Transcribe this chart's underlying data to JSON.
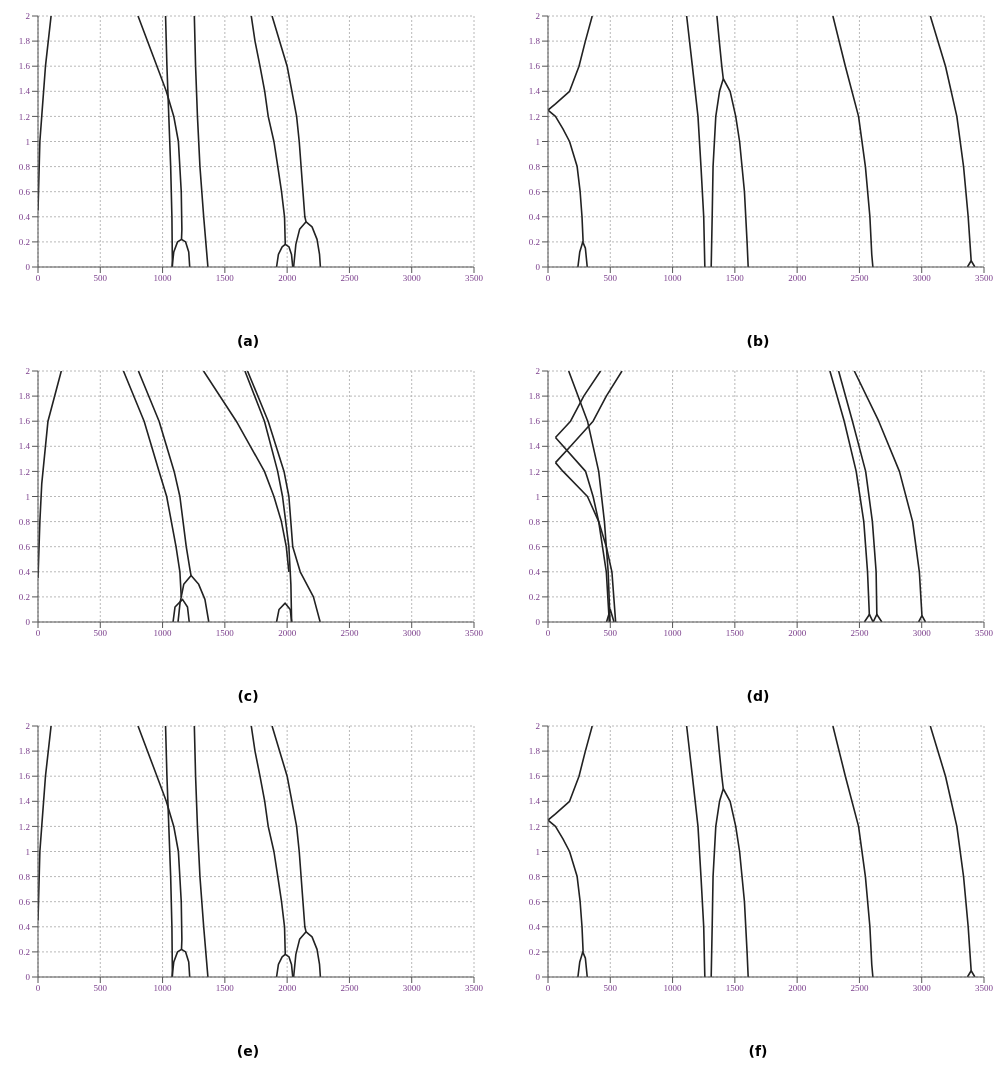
{
  "chart_data": [
    {
      "type": "line",
      "title": "(a)",
      "xlim": [
        0,
        3500
      ],
      "ylim": [
        0,
        2
      ],
      "xticks": [
        0,
        500,
        1000,
        1500,
        2000,
        2500,
        3000,
        3500
      ],
      "yticks": [
        0,
        0.2,
        0.4,
        0.6,
        0.8,
        1,
        1.2,
        1.4,
        1.6,
        1.8,
        2
      ],
      "grid": true,
      "series": [
        {
          "color": "#222222",
          "x": [
            0,
            15,
            30,
            60,
            105
          ],
          "values": [
            0.45,
            1,
            1.2,
            1.6,
            2
          ]
        },
        {
          "color": "#222222",
          "x": [
            803,
            955,
            1030,
            1090,
            1127,
            1150,
            1155,
            1152
          ],
          "values": [
            2,
            1.6,
            1.4,
            1.2,
            1,
            0.6,
            0.3,
            0.22
          ]
        },
        {
          "color": "#222222",
          "x": [
            1076,
            1090,
            1120,
            1152,
            1185,
            1210,
            1218
          ],
          "values": [
            0,
            0.12,
            0.2,
            0.22,
            0.2,
            0.12,
            0
          ]
        },
        {
          "color": "#222222",
          "x": [
            1024,
            1035,
            1050,
            1065,
            1075,
            1079
          ],
          "values": [
            2,
            1.6,
            1.2,
            0.8,
            0.4,
            0
          ]
        },
        {
          "color": "#222222",
          "x": [
            1255,
            1265,
            1280,
            1300,
            1330,
            1364
          ],
          "values": [
            2,
            1.6,
            1.2,
            0.8,
            0.4,
            0
          ]
        },
        {
          "color": "#222222",
          "x": [
            1712,
            1742,
            1782,
            1820,
            1848,
            1894,
            1925,
            1955,
            1979,
            1985
          ],
          "values": [
            2,
            1.8,
            1.6,
            1.4,
            1.2,
            1,
            0.8,
            0.6,
            0.4,
            0.18
          ]
        },
        {
          "color": "#222222",
          "x": [
            1915,
            1930,
            1960,
            1985,
            2015,
            2035,
            2045
          ],
          "values": [
            0,
            0.1,
            0.16,
            0.18,
            0.16,
            0.1,
            0
          ]
        },
        {
          "color": "#222222",
          "x": [
            1879,
            2000,
            2076,
            2097,
            2127,
            2142,
            2152
          ],
          "values": [
            2,
            1.6,
            1.2,
            1,
            0.6,
            0.4,
            0.36
          ]
        },
        {
          "color": "#222222",
          "x": [
            2052,
            2070,
            2100,
            2152,
            2200,
            2240,
            2260,
            2267
          ],
          "values": [
            0,
            0.18,
            0.3,
            0.36,
            0.32,
            0.22,
            0.1,
            0
          ]
        }
      ]
    },
    {
      "type": "line",
      "title": "(b)",
      "xlim": [
        0,
        3500
      ],
      "ylim": [
        0,
        2
      ],
      "xticks": [
        0,
        500,
        1000,
        1500,
        2000,
        2500,
        3000,
        3500
      ],
      "yticks": [
        0,
        0.2,
        0.4,
        0.6,
        0.8,
        1,
        1.2,
        1.4,
        1.6,
        1.8,
        2
      ],
      "grid": true,
      "series": [
        {
          "color": "#222222",
          "x": [
            0,
            60,
            173,
            249,
            300,
            355
          ],
          "values": [
            1.25,
            1.3,
            1.4,
            1.6,
            1.8,
            2
          ]
        },
        {
          "color": "#222222",
          "x": [
            0,
            60,
            120,
            173,
            234,
            258,
            273,
            282
          ],
          "values": [
            1.25,
            1.2,
            1.1,
            1,
            0.8,
            0.6,
            0.4,
            0.2
          ]
        },
        {
          "color": "#222222",
          "x": [
            240,
            255,
            279,
            300,
            315
          ],
          "values": [
            0,
            0.12,
            0.2,
            0.15,
            0
          ]
        },
        {
          "color": "#222222",
          "x": [
            1113,
            1159,
            1204,
            1228,
            1250,
            1259
          ],
          "values": [
            2,
            1.6,
            1.2,
            0.8,
            0.4,
            0
          ]
        },
        {
          "color": "#222222",
          "x": [
            1310,
            1318,
            1325,
            1347,
            1377,
            1407,
            1462,
            1507,
            1538,
            1577,
            1598,
            1607
          ],
          "values": [
            0,
            0.4,
            0.8,
            1.2,
            1.4,
            1.5,
            1.4,
            1.2,
            1,
            0.6,
            0.2,
            0
          ]
        },
        {
          "color": "#222222",
          "x": [
            1356,
            1375,
            1395,
            1407
          ],
          "values": [
            2,
            1.8,
            1.6,
            1.5
          ]
        },
        {
          "color": "#222222",
          "x": [
            2287,
            2387,
            2493,
            2548,
            2584,
            2599,
            2608
          ],
          "values": [
            2,
            1.6,
            1.2,
            0.8,
            0.4,
            0.1,
            0
          ]
        },
        {
          "color": "#222222",
          "x": [
            3069,
            3191,
            3282,
            3336,
            3373,
            3397
          ],
          "values": [
            2,
            1.6,
            1.2,
            0.8,
            0.4,
            0.05
          ]
        },
        {
          "color": "#222222",
          "x": [
            3367,
            3397,
            3427
          ],
          "values": [
            0,
            0.05,
            0
          ]
        }
      ]
    },
    {
      "type": "line",
      "title": "(c)",
      "xlim": [
        0,
        3500
      ],
      "ylim": [
        0,
        2
      ],
      "xticks": [
        0,
        500,
        1000,
        1500,
        2000,
        2500,
        3000,
        3500
      ],
      "yticks": [
        0,
        0.2,
        0.4,
        0.6,
        0.8,
        1,
        1.2,
        1.4,
        1.6,
        1.8,
        2
      ],
      "grid": true,
      "series": [
        {
          "color": "#222222",
          "x": [
            0,
            15,
            30,
            80,
            187
          ],
          "values": [
            0.35,
            0.8,
            1.1,
            1.6,
            2
          ]
        },
        {
          "color": "#222222",
          "x": [
            686,
            852,
            972,
            1033,
            1108,
            1139,
            1150
          ],
          "values": [
            2,
            1.6,
            1.2,
            1,
            0.6,
            0.4,
            0.2
          ]
        },
        {
          "color": "#222222",
          "x": [
            806,
            972,
            1093,
            1139,
            1190,
            1223,
            1229
          ],
          "values": [
            2,
            1.6,
            1.2,
            1,
            0.6,
            0.4,
            0.37
          ]
        },
        {
          "color": "#222222",
          "x": [
            1124,
            1140,
            1170,
            1229,
            1290,
            1340,
            1371
          ],
          "values": [
            0,
            0.15,
            0.3,
            0.37,
            0.3,
            0.18,
            0
          ]
        },
        {
          "color": "#222222",
          "x": [
            1084,
            1100,
            1160,
            1200,
            1214
          ],
          "values": [
            0,
            0.12,
            0.18,
            0.12,
            0
          ]
        },
        {
          "color": "#222222",
          "x": [
            1329,
            1592,
            1818,
            1894,
            1954,
            1993,
            2014
          ],
          "values": [
            2,
            1.6,
            1.2,
            1,
            0.8,
            0.6,
            0.4
          ]
        },
        {
          "color": "#222222",
          "x": [
            1915,
            1935,
            1984,
            2025,
            2036
          ],
          "values": [
            0,
            0.1,
            0.15,
            0.1,
            0
          ]
        },
        {
          "color": "#222222",
          "x": [
            1661,
            1818,
            1924,
            1963,
            2014,
            2030,
            2036
          ],
          "values": [
            2,
            1.6,
            1.2,
            1,
            0.6,
            0.3,
            0
          ]
        },
        {
          "color": "#222222",
          "x": [
            1682,
            1848,
            1975,
            2014,
            2045,
            2105,
            2211,
            2265
          ],
          "values": [
            2,
            1.6,
            1.2,
            1,
            0.6,
            0.4,
            0.2,
            0
          ]
        }
      ]
    },
    {
      "type": "line",
      "title": "(d)",
      "xlim": [
        0,
        3500
      ],
      "ylim": [
        0,
        2
      ],
      "xticks": [
        0,
        500,
        1000,
        1500,
        2000,
        2500,
        3000,
        3500
      ],
      "yticks": [
        0,
        0.2,
        0.4,
        0.6,
        0.8,
        1,
        1.2,
        1.4,
        1.6,
        1.8,
        2
      ],
      "grid": true,
      "series": [
        {
          "color": "#222222",
          "x": [
            166,
            317,
            407,
            453,
            483,
            498
          ],
          "values": [
            2,
            1.6,
            1.2,
            0.8,
            0.4,
            0
          ]
        },
        {
          "color": "#222222",
          "x": [
            422,
            287,
            181,
            60
          ],
          "values": [
            2,
            1.8,
            1.6,
            1.47
          ]
        },
        {
          "color": "#222222",
          "x": [
            60,
            302,
            362,
            407,
            468,
            492
          ],
          "values": [
            1.47,
            1.2,
            1,
            0.8,
            0.4,
            0
          ]
        },
        {
          "color": "#222222",
          "x": [
            594,
            468,
            362,
            181,
            60
          ],
          "values": [
            2,
            1.8,
            1.6,
            1.4,
            1.27
          ]
        },
        {
          "color": "#222222",
          "x": [
            60,
            121,
            317,
            407,
            468,
            513,
            543
          ],
          "values": [
            1.27,
            1.2,
            1,
            0.8,
            0.6,
            0.4,
            0
          ]
        },
        {
          "color": "#222222",
          "x": [
            470,
            500,
            530
          ],
          "values": [
            0,
            0.1,
            0
          ]
        },
        {
          "color": "#222222",
          "x": [
            2263,
            2378,
            2474,
            2535,
            2565,
            2580
          ],
          "values": [
            2,
            1.6,
            1.2,
            0.8,
            0.4,
            0.05
          ]
        },
        {
          "color": "#222222",
          "x": [
            2540,
            2580,
            2610
          ],
          "values": [
            0,
            0.06,
            0
          ]
        },
        {
          "color": "#222222",
          "x": [
            2333,
            2444,
            2550,
            2604,
            2634,
            2640
          ],
          "values": [
            2,
            1.6,
            1.2,
            0.8,
            0.4,
            0.05
          ]
        },
        {
          "color": "#222222",
          "x": [
            2610,
            2640,
            2680
          ],
          "values": [
            0,
            0.06,
            0
          ]
        },
        {
          "color": "#222222",
          "x": [
            2459,
            2655,
            2821,
            2927,
            2981,
            3002
          ],
          "values": [
            2,
            1.6,
            1.2,
            0.8,
            0.4,
            0.05
          ]
        },
        {
          "color": "#222222",
          "x": [
            2975,
            3002,
            3030
          ],
          "values": [
            0,
            0.05,
            0
          ]
        }
      ]
    },
    {
      "type": "line",
      "title": "(e)",
      "xlim": [
        0,
        3500
      ],
      "ylim": [
        0,
        2
      ],
      "xticks": [
        0,
        500,
        1000,
        1500,
        2000,
        2500,
        3000,
        3500
      ],
      "yticks": [
        0,
        0.2,
        0.4,
        0.6,
        0.8,
        1,
        1.2,
        1.4,
        1.6,
        1.8,
        2
      ],
      "grid": true,
      "series": [
        {
          "color": "#222222",
          "x": [
            0,
            15,
            30,
            60,
            105
          ],
          "values": [
            0.45,
            1,
            1.2,
            1.6,
            2
          ]
        },
        {
          "color": "#222222",
          "x": [
            803,
            955,
            1030,
            1090,
            1127,
            1150,
            1155,
            1152
          ],
          "values": [
            2,
            1.6,
            1.4,
            1.2,
            1,
            0.6,
            0.3,
            0.22
          ]
        },
        {
          "color": "#222222",
          "x": [
            1076,
            1090,
            1120,
            1152,
            1185,
            1210,
            1218
          ],
          "values": [
            0,
            0.12,
            0.2,
            0.22,
            0.2,
            0.12,
            0
          ]
        },
        {
          "color": "#222222",
          "x": [
            1024,
            1035,
            1050,
            1065,
            1075,
            1079
          ],
          "values": [
            2,
            1.6,
            1.2,
            0.8,
            0.4,
            0
          ]
        },
        {
          "color": "#222222",
          "x": [
            1255,
            1265,
            1280,
            1300,
            1330,
            1364
          ],
          "values": [
            2,
            1.6,
            1.2,
            0.8,
            0.4,
            0
          ]
        },
        {
          "color": "#222222",
          "x": [
            1712,
            1742,
            1782,
            1820,
            1848,
            1894,
            1925,
            1955,
            1979,
            1985
          ],
          "values": [
            2,
            1.8,
            1.6,
            1.4,
            1.2,
            1,
            0.8,
            0.6,
            0.4,
            0.18
          ]
        },
        {
          "color": "#222222",
          "x": [
            1915,
            1930,
            1960,
            1985,
            2015,
            2035,
            2045
          ],
          "values": [
            0,
            0.1,
            0.16,
            0.18,
            0.16,
            0.1,
            0
          ]
        },
        {
          "color": "#222222",
          "x": [
            1879,
            2000,
            2076,
            2097,
            2127,
            2142,
            2152
          ],
          "values": [
            2,
            1.6,
            1.2,
            1,
            0.6,
            0.4,
            0.36
          ]
        },
        {
          "color": "#222222",
          "x": [
            2052,
            2070,
            2100,
            2152,
            2200,
            2240,
            2260,
            2267
          ],
          "values": [
            0,
            0.18,
            0.3,
            0.36,
            0.32,
            0.22,
            0.1,
            0
          ]
        }
      ]
    },
    {
      "type": "line",
      "title": "(f)",
      "xlim": [
        0,
        3500
      ],
      "ylim": [
        0,
        2
      ],
      "xticks": [
        0,
        500,
        1000,
        1500,
        2000,
        2500,
        3000,
        3500
      ],
      "yticks": [
        0,
        0.2,
        0.4,
        0.6,
        0.8,
        1,
        1.2,
        1.4,
        1.6,
        1.8,
        2
      ],
      "grid": true,
      "series": [
        {
          "color": "#222222",
          "x": [
            0,
            60,
            173,
            249,
            300,
            355
          ],
          "values": [
            1.25,
            1.3,
            1.4,
            1.6,
            1.8,
            2
          ]
        },
        {
          "color": "#222222",
          "x": [
            0,
            60,
            120,
            173,
            234,
            258,
            273,
            282
          ],
          "values": [
            1.25,
            1.2,
            1.1,
            1,
            0.8,
            0.6,
            0.4,
            0.2
          ]
        },
        {
          "color": "#222222",
          "x": [
            240,
            255,
            279,
            300,
            315
          ],
          "values": [
            0,
            0.12,
            0.2,
            0.15,
            0
          ]
        },
        {
          "color": "#222222",
          "x": [
            1113,
            1159,
            1204,
            1228,
            1250,
            1259
          ],
          "values": [
            2,
            1.6,
            1.2,
            0.8,
            0.4,
            0
          ]
        },
        {
          "color": "#222222",
          "x": [
            1310,
            1318,
            1325,
            1347,
            1377,
            1407,
            1462,
            1507,
            1538,
            1577,
            1598,
            1607
          ],
          "values": [
            0,
            0.4,
            0.8,
            1.2,
            1.4,
            1.5,
            1.4,
            1.2,
            1,
            0.6,
            0.2,
            0
          ]
        },
        {
          "color": "#222222",
          "x": [
            1356,
            1375,
            1395,
            1407
          ],
          "values": [
            2,
            1.8,
            1.6,
            1.5
          ]
        },
        {
          "color": "#222222",
          "x": [
            2287,
            2387,
            2493,
            2548,
            2584,
            2599,
            2608
          ],
          "values": [
            2,
            1.6,
            1.2,
            0.8,
            0.4,
            0.1,
            0
          ]
        },
        {
          "color": "#222222",
          "x": [
            3069,
            3191,
            3282,
            3336,
            3373,
            3397
          ],
          "values": [
            2,
            1.6,
            1.2,
            0.8,
            0.4,
            0.05
          ]
        },
        {
          "color": "#222222",
          "x": [
            3367,
            3397,
            3427
          ],
          "values": [
            0,
            0.05,
            0
          ]
        }
      ]
    }
  ]
}
